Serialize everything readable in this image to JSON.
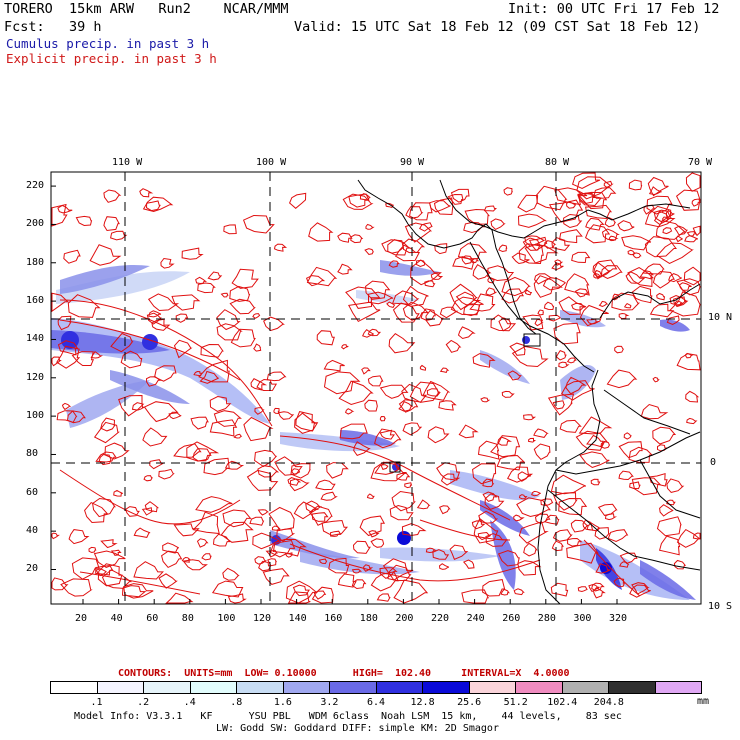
{
  "header": {
    "model": "TORERO  15km ARW   Run2    NCAR/MMM",
    "init": "Init: 00 UTC Fri 17 Feb 12",
    "fcst": "Fcst:   39 h",
    "valid": "Valid: 15 UTC Sat 18 Feb 12 (09 CST Sat 18 Feb 12)",
    "field1": "Cumulus precip. in past 3 h",
    "field2": "Explicit precip. in past 3 h"
  },
  "map": {
    "top_lon_labels": [
      "110 W",
      "100 W",
      "90 W",
      "80 W",
      "70 W"
    ],
    "right_lat_labels": [
      "10 N",
      "0",
      "10 S"
    ],
    "y_ticks": [
      "220",
      "200",
      "180",
      "160",
      "140",
      "120",
      "100",
      "80",
      "60",
      "40",
      "20"
    ],
    "x_ticks": [
      "20",
      "40",
      "60",
      "80",
      "100",
      "120",
      "140",
      "160",
      "180",
      "200",
      "220",
      "240",
      "260",
      "280",
      "300",
      "320"
    ],
    "colors": {
      "contour": "#e01010",
      "coast": "#000000"
    }
  },
  "legend": {
    "contours_info": "CONTOURS:  UNITS=mm  LOW= 0.10000      HIGH=  102.40     INTERVAL=X  4.0000",
    "bins": [
      ".1",
      ".2",
      ".4",
      ".8",
      "1.6",
      "3.2",
      "6.4",
      "12.8",
      "25.6",
      "51.2",
      "102.4",
      "204.8"
    ],
    "unit": "mm",
    "colors": [
      "#ffffff",
      "#f4f4ff",
      "#e6f4fa",
      "#e2fdfd",
      "#c8ddf4",
      "#a0a8f0",
      "#6a6ae6",
      "#3030e0",
      "#0a0ad8",
      "#fad4da",
      "#f08cc0",
      "#b0b0b0",
      "#303030",
      "#e0a8f4"
    ]
  },
  "footer": {
    "line1": "Model Info: V3.3.1   KF      YSU PBL   WDM 6class  Noah LSM  15 km,    44 levels,    83 sec",
    "line2": "LW: Godd SW: Goddard DIFF: simple KM: 2D Smagor"
  }
}
